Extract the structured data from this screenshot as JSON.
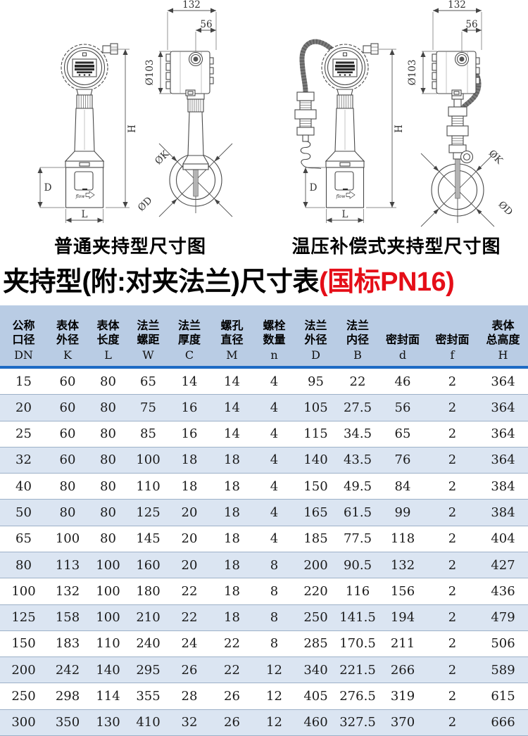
{
  "title": {
    "main": "夹持型(附:对夹法兰)尺寸表",
    "highlight": "(国标PN16)"
  },
  "colors": {
    "highlight_red": "#e50e18",
    "header_bg": "#b9cce4",
    "alt_row_bg": "#dbe5f2",
    "header_rule_blue": "#1e6bc4",
    "row_border": "#9db1c8"
  },
  "diagrams": {
    "standard": {
      "caption": "普通夹持型尺寸图",
      "dims": {
        "head_width": "132",
        "port_offset": "56",
        "head_dia": "Ø103",
        "total_height": "H",
        "body_height": "D",
        "body_length": "L",
        "bolt_circle_dia": "ØK",
        "flange_dia": "ØD",
        "flow_mark": "flow"
      }
    },
    "compensated": {
      "caption": "温压补偿式夹持型尺寸图",
      "dims": {
        "head_width": "132",
        "port_offset": "56",
        "head_dia": "Ø103",
        "total_height": "H",
        "body_height": "D",
        "body_length": "L",
        "bolt_circle_dia": "ØK",
        "flange_dia": "ØD",
        "flow_mark": "flow"
      }
    }
  },
  "table": {
    "columns": [
      {
        "lines": [
          "公称",
          "口径"
        ],
        "letter": "DN"
      },
      {
        "lines": [
          "表体",
          "外径"
        ],
        "letter": "K"
      },
      {
        "lines": [
          "表体",
          "长度"
        ],
        "letter": "L"
      },
      {
        "lines": [
          "法兰",
          "螺距"
        ],
        "letter": "W"
      },
      {
        "lines": [
          "法兰",
          "厚度"
        ],
        "letter": "C"
      },
      {
        "lines": [
          "螺孔",
          "直径"
        ],
        "letter": "M"
      },
      {
        "lines": [
          "螺栓",
          "数量"
        ],
        "letter": "n"
      },
      {
        "lines": [
          "法兰",
          "外径"
        ],
        "letter": "D"
      },
      {
        "lines": [
          "法兰",
          "内径"
        ],
        "letter": "B"
      },
      {
        "lines": [
          "密封面"
        ],
        "letter": "d"
      },
      {
        "lines": [
          "密封面"
        ],
        "letter": "f"
      },
      {
        "lines": [
          "表体",
          "总高度"
        ],
        "letter": "H"
      }
    ],
    "rows": [
      [
        15,
        60,
        80,
        65,
        14,
        14,
        4,
        95,
        22,
        46,
        2,
        364
      ],
      [
        20,
        60,
        80,
        75,
        16,
        14,
        4,
        105,
        27.5,
        56,
        2,
        364
      ],
      [
        25,
        60,
        80,
        85,
        16,
        14,
        4,
        115,
        34.5,
        65,
        2,
        364
      ],
      [
        32,
        60,
        80,
        100,
        18,
        18,
        4,
        140,
        43.5,
        76,
        2,
        364
      ],
      [
        40,
        80,
        80,
        110,
        18,
        18,
        4,
        150,
        49.5,
        84,
        2,
        384
      ],
      [
        50,
        80,
        80,
        125,
        20,
        18,
        4,
        165,
        61.5,
        99,
        2,
        384
      ],
      [
        65,
        100,
        80,
        145,
        20,
        18,
        4,
        185,
        77.5,
        118,
        2,
        404
      ],
      [
        80,
        113,
        100,
        160,
        20,
        18,
        8,
        200,
        90.5,
        132,
        2,
        427
      ],
      [
        100,
        132,
        100,
        180,
        22,
        18,
        8,
        220,
        116,
        156,
        2,
        436
      ],
      [
        125,
        158,
        100,
        210,
        22,
        18,
        8,
        250,
        141.5,
        194,
        2,
        479
      ],
      [
        150,
        183,
        110,
        240,
        24,
        22,
        8,
        285,
        170.5,
        211,
        2,
        506
      ],
      [
        200,
        242,
        140,
        295,
        26,
        22,
        12,
        340,
        221.5,
        266,
        2,
        589
      ],
      [
        250,
        298,
        114,
        355,
        28,
        26,
        12,
        405,
        276.5,
        319,
        2,
        615
      ],
      [
        300,
        350,
        130,
        410,
        32,
        26,
        12,
        460,
        327.5,
        370,
        2,
        666
      ]
    ]
  }
}
